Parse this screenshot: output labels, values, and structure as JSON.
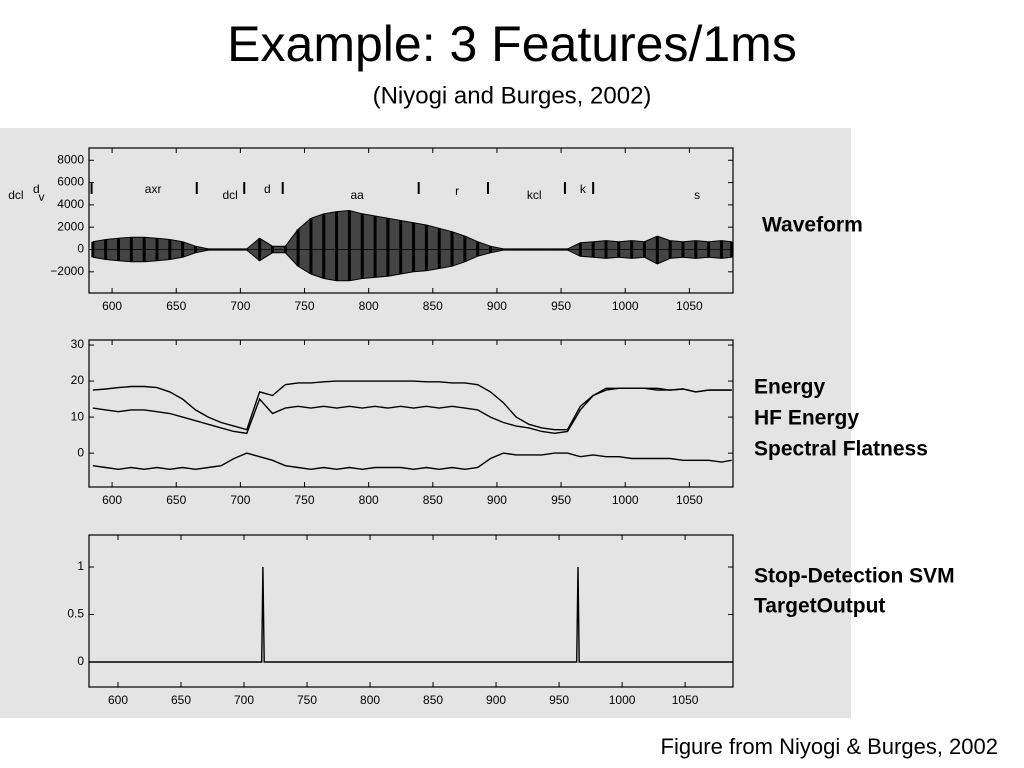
{
  "slide": {
    "title": "Example: 3 Features/1ms",
    "subtitle": "(Niyogi and Burges, 2002)",
    "caption": "Figure from Niyogi & Burges, 2002"
  },
  "chart_data": [
    {
      "type": "range",
      "label": "Waveform",
      "xlim": [
        582,
        1084
      ],
      "xticks": [
        600,
        650,
        700,
        750,
        800,
        850,
        900,
        950,
        1000,
        1050
      ],
      "ylim": [
        -3900,
        9100
      ],
      "yticks": [
        {
          "value": -2000,
          "label": "−2000"
        },
        0,
        2000,
        4000,
        6000,
        8000
      ],
      "phones": [
        {
          "text": "dcl",
          "x": 525
        },
        {
          "text": "d",
          "x": 541
        },
        {
          "text": "v",
          "x": 545
        },
        {
          "text": "axr",
          "x": 632
        },
        {
          "text": "dcl",
          "x": 692
        },
        {
          "text": "d",
          "x": 721
        },
        {
          "text": "aa",
          "x": 791
        },
        {
          "text": "r",
          "x": 869
        },
        {
          "text": "kcl",
          "x": 929
        },
        {
          "text": "k",
          "x": 967
        },
        {
          "text": "s",
          "x": 1056
        }
      ],
      "boundaries": [
        584,
        666,
        703,
        733,
        839,
        893,
        953,
        975
      ],
      "x": [
        585,
        595,
        605,
        615,
        625,
        635,
        645,
        655,
        665,
        675,
        685,
        695,
        705,
        715,
        725,
        735,
        745,
        755,
        765,
        775,
        785,
        795,
        805,
        815,
        825,
        835,
        845,
        855,
        865,
        875,
        885,
        895,
        905,
        915,
        925,
        935,
        945,
        955,
        965,
        975,
        985,
        995,
        1005,
        1015,
        1025,
        1035,
        1045,
        1055,
        1065,
        1075,
        1083
      ],
      "series": [
        {
          "color": "#000000",
          "values": [
            700,
            900,
            1000,
            1100,
            1100,
            1000,
            900,
            700,
            300,
            50,
            50,
            50,
            50,
            1000,
            300,
            300,
            1800,
            2800,
            3200,
            3400,
            3500,
            3200,
            3000,
            2800,
            2600,
            2400,
            2200,
            1900,
            1600,
            1200,
            700,
            300,
            50,
            50,
            50,
            50,
            50,
            50,
            600,
            700,
            800,
            700,
            800,
            700,
            1200,
            800,
            700,
            800,
            700,
            800,
            700
          ]
        },
        {
          "color": "#000000",
          "values": [
            -700,
            -900,
            -1000,
            -1100,
            -1100,
            -1000,
            -900,
            -700,
            -300,
            -50,
            -50,
            -50,
            -50,
            -1000,
            -300,
            -300,
            -1500,
            -2200,
            -2600,
            -2800,
            -2800,
            -2600,
            -2500,
            -2400,
            -2200,
            -2000,
            -1900,
            -1700,
            -1500,
            -1100,
            -600,
            -300,
            -50,
            -50,
            -50,
            -50,
            -50,
            -50,
            -600,
            -700,
            -800,
            -700,
            -800,
            -700,
            -1300,
            -800,
            -700,
            -800,
            -700,
            -800,
            -700
          ]
        }
      ]
    },
    {
      "type": "line",
      "xlim": [
        582,
        1084
      ],
      "xticks": [
        600,
        650,
        700,
        750,
        800,
        850,
        900,
        950,
        1000,
        1050
      ],
      "ylim": [
        -9.4,
        31.4
      ],
      "yticks": [
        0,
        10,
        20,
        30
      ],
      "x": [
        585,
        595,
        605,
        615,
        625,
        635,
        645,
        655,
        665,
        675,
        685,
        695,
        705,
        715,
        725,
        735,
        745,
        755,
        765,
        775,
        785,
        795,
        805,
        815,
        825,
        835,
        845,
        855,
        865,
        875,
        885,
        895,
        905,
        915,
        925,
        935,
        945,
        955,
        965,
        975,
        985,
        995,
        1005,
        1015,
        1025,
        1035,
        1045,
        1055,
        1065,
        1075,
        1083
      ],
      "series": [
        {
          "name": "Energy",
          "color": "#000000",
          "values": [
            17.5,
            17.8,
            18.2,
            18.5,
            18.5,
            18.2,
            17,
            15,
            12,
            10,
            8.5,
            7.5,
            6.5,
            17,
            16,
            19,
            19.5,
            19.5,
            19.8,
            20,
            20,
            20,
            20,
            20,
            20,
            20,
            19.8,
            19.8,
            19.5,
            19.5,
            19,
            17,
            14,
            10,
            8,
            7,
            6.5,
            6.5,
            13,
            16,
            17.5,
            18,
            18,
            18,
            18,
            17.5,
            17.8,
            17,
            17.5,
            17.5,
            17.5
          ]
        },
        {
          "name": "HF Energy",
          "color": "#000000",
          "values": [
            12.5,
            12,
            11.5,
            12,
            12,
            11.5,
            11,
            10,
            9,
            8,
            7,
            6,
            5.5,
            15,
            11,
            12.5,
            13,
            12.5,
            13,
            12.5,
            13,
            12.5,
            13,
            12.5,
            13,
            12.5,
            13,
            12.5,
            13,
            12.5,
            12,
            10,
            8.5,
            7.5,
            7,
            6,
            5.5,
            6,
            12,
            16,
            18,
            18,
            18,
            18,
            17.5,
            17.5,
            17.8,
            17,
            17.5,
            17.5,
            17.5
          ]
        },
        {
          "name": "Spectral Flatness",
          "color": "#000000",
          "values": [
            -3.5,
            -4,
            -4.5,
            -4,
            -4.5,
            -4,
            -4.5,
            -4,
            -4.5,
            -4,
            -3.5,
            -1.5,
            0,
            -1,
            -2,
            -3.5,
            -4,
            -4.5,
            -4,
            -4.5,
            -4,
            -4.5,
            -4,
            -4,
            -4,
            -4.5,
            -4,
            -4.5,
            -4,
            -4.5,
            -4,
            -1.5,
            0,
            -0.5,
            -0.5,
            -0.5,
            0,
            0,
            -1,
            -0.5,
            -1,
            -1,
            -1.5,
            -1.5,
            -1.5,
            -1.5,
            -2,
            -2,
            -2,
            -2.5,
            -2
          ]
        }
      ]
    },
    {
      "type": "line",
      "label": [
        "Stop-Detection SVM",
        "TargetOutput"
      ],
      "xlim": [
        577,
        1088
      ],
      "xticks": [
        600,
        650,
        700,
        750,
        800,
        850,
        900,
        950,
        1000,
        1050
      ],
      "ylim": [
        -0.263,
        1.337
      ],
      "yticks": [
        0,
        0.5,
        1
      ],
      "x": [
        577,
        714,
        715,
        716,
        964,
        965,
        966,
        1088
      ],
      "series": [
        {
          "color": "#000000",
          "values": [
            0,
            0,
            1,
            0,
            0,
            1,
            0,
            0
          ]
        }
      ]
    }
  ]
}
